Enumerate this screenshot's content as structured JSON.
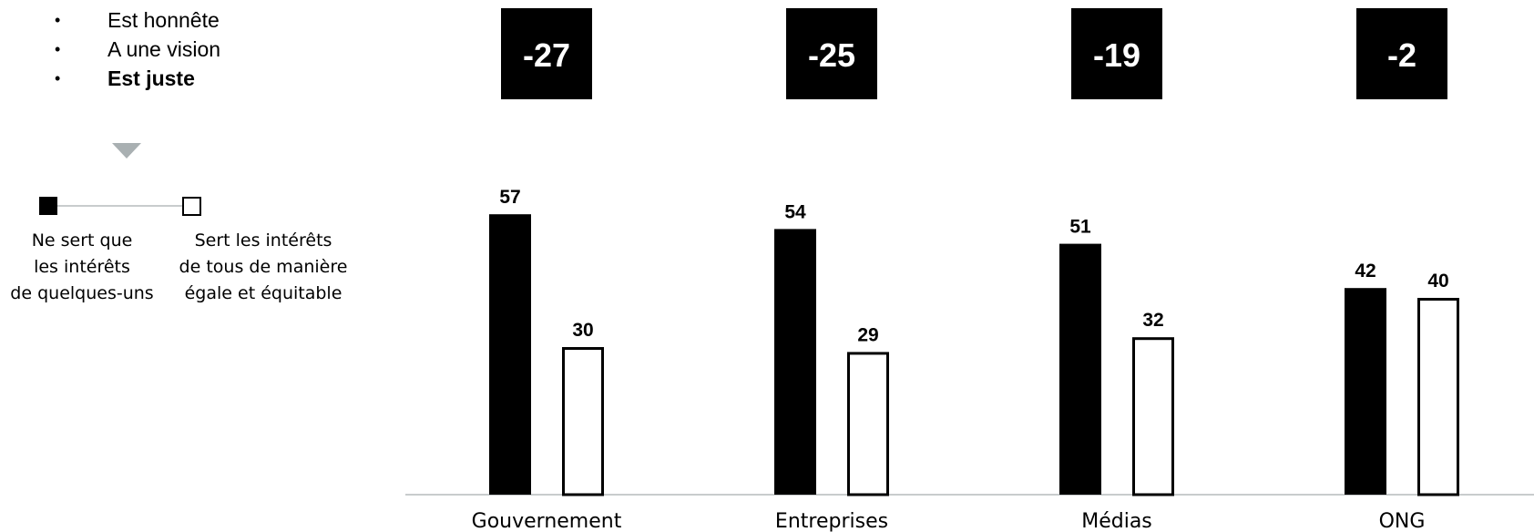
{
  "bullets": [
    {
      "text": "Est honnête",
      "bold": false
    },
    {
      "text": "A une vision",
      "bold": false
    },
    {
      "text": "Est juste",
      "bold": true
    }
  ],
  "bullet_glyph": "•",
  "triangle_icon": "down-triangle-icon",
  "scale": {
    "left_label": "Ne sert que\nles intérêts\nde quelques-uns",
    "right_label": "Sert les intérêts\nde tous de manière\négale et équitable"
  },
  "colors": {
    "filled": "#000000",
    "outline": "#000000",
    "box_bg": "#000000",
    "box_text": "#ffffff",
    "baseline": "#c8cccd",
    "triangle": "#a9b0b2"
  },
  "chart_data": {
    "type": "bar",
    "categories": [
      "Gouvernement",
      "Entreprises",
      "Médias",
      "ONG"
    ],
    "series": [
      {
        "values": [
          57,
          54,
          51,
          42
        ]
      },
      {
        "values": [
          30,
          29,
          32,
          40
        ]
      }
    ],
    "differences": [
      "-27",
      "-25",
      "-19",
      "-2"
    ],
    "ylim": [
      0,
      100
    ],
    "grid": false
  }
}
